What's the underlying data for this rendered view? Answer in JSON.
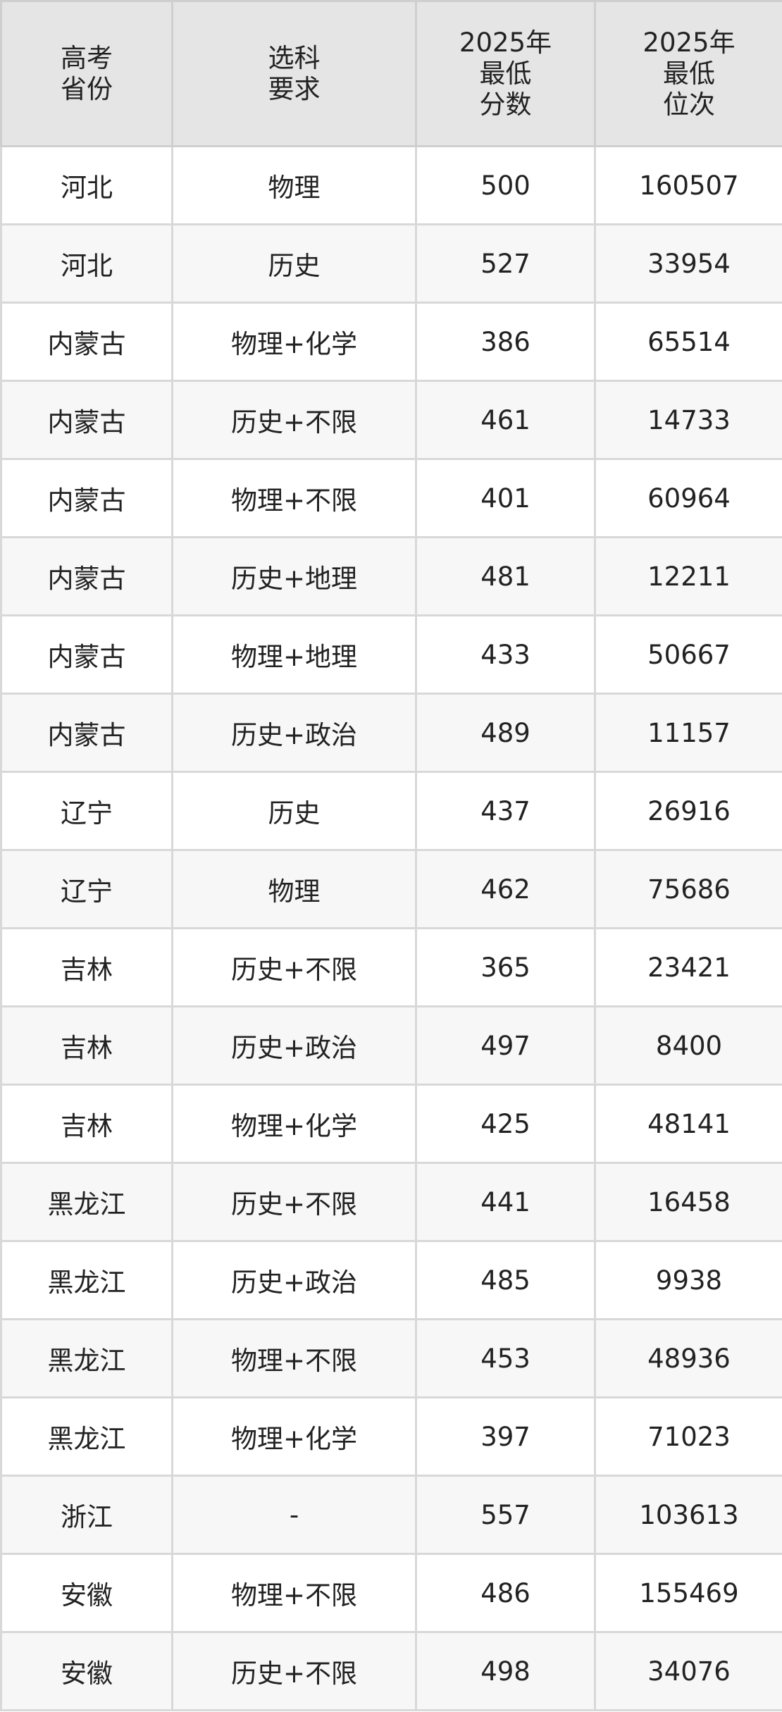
{
  "table": {
    "headers": [
      "高考\n省份",
      "选科\n要求",
      "2025年\n最低\n分数",
      "2025年\n最低\n位次"
    ],
    "rows": [
      [
        "河北",
        "物理",
        "500",
        "160507"
      ],
      [
        "河北",
        "历史",
        "527",
        "33954"
      ],
      [
        "内蒙古",
        "物理+化学",
        "386",
        "65514"
      ],
      [
        "内蒙古",
        "历史+不限",
        "461",
        "14733"
      ],
      [
        "内蒙古",
        "物理+不限",
        "401",
        "60964"
      ],
      [
        "内蒙古",
        "历史+地理",
        "481",
        "12211"
      ],
      [
        "内蒙古",
        "物理+地理",
        "433",
        "50667"
      ],
      [
        "内蒙古",
        "历史+政治",
        "489",
        "11157"
      ],
      [
        "辽宁",
        "历史",
        "437",
        "26916"
      ],
      [
        "辽宁",
        "物理",
        "462",
        "75686"
      ],
      [
        "吉林",
        "历史+不限",
        "365",
        "23421"
      ],
      [
        "吉林",
        "历史+政治",
        "497",
        "8400"
      ],
      [
        "吉林",
        "物理+化学",
        "425",
        "48141"
      ],
      [
        "黑龙江",
        "历史+不限",
        "441",
        "16458"
      ],
      [
        "黑龙江",
        "历史+政治",
        "485",
        "9938"
      ],
      [
        "黑龙江",
        "物理+不限",
        "453",
        "48936"
      ],
      [
        "黑龙江",
        "物理+化学",
        "397",
        "71023"
      ],
      [
        "浙江",
        "-",
        "557",
        "103613"
      ],
      [
        "安徽",
        "物理+不限",
        "486",
        "155469"
      ],
      [
        "安徽",
        "历史+不限",
        "498",
        "34076"
      ]
    ]
  }
}
